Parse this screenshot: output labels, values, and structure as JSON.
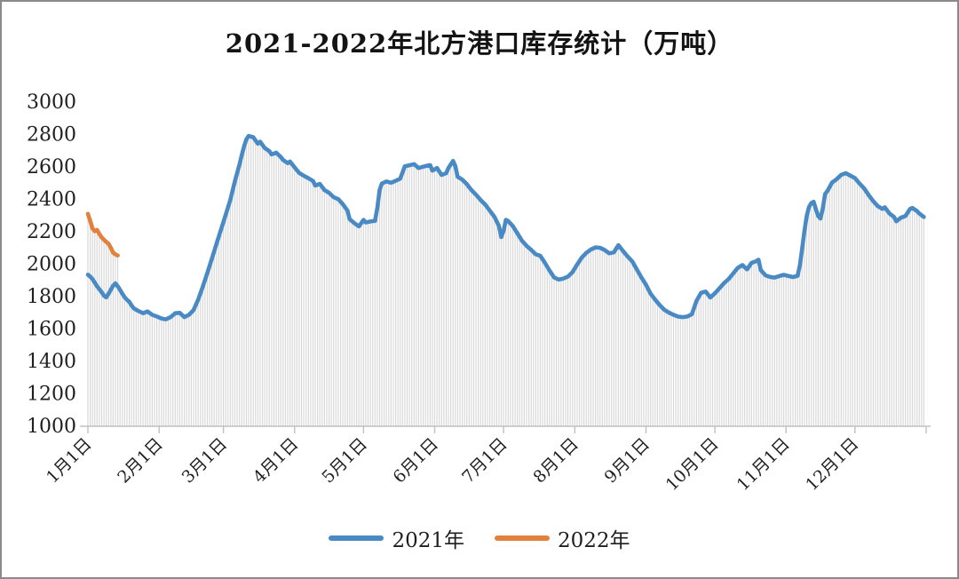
{
  "chart_data": {
    "type": "line",
    "title": "2021-2022年北方港口库存统计（万吨）",
    "xlabel": "",
    "ylabel": "",
    "unit": "万吨",
    "ylim": [
      1000,
      3000
    ],
    "y_ticks": [
      3000,
      2800,
      2600,
      2400,
      2200,
      2000,
      1800,
      1600,
      1400,
      1200,
      1000
    ],
    "x_tick_labels": [
      "1月1日",
      "2月1日",
      "3月1日",
      "4月1日",
      "5月1日",
      "6月1日",
      "7月1日",
      "8月1日",
      "9月1日",
      "10月1日",
      "11月1日",
      "12月1日"
    ],
    "x_tick_days": [
      0,
      31,
      59,
      90,
      120,
      151,
      181,
      212,
      243,
      273,
      304,
      334
    ],
    "days_span": 365,
    "grid": false,
    "legend_position": "bottom",
    "axis_color": "#c0c0c0",
    "text_color": "#1f1f1f",
    "drop_lines": {
      "show": true,
      "color": "#d8d8d8"
    },
    "series": [
      {
        "name": "2021年",
        "color": "#4a8ac4",
        "points": [
          [
            0,
            1930
          ],
          [
            1,
            1918
          ],
          [
            2,
            1902
          ],
          [
            3,
            1880
          ],
          [
            4,
            1858
          ],
          [
            5,
            1840
          ],
          [
            6,
            1822
          ],
          [
            7,
            1800
          ],
          [
            8,
            1790
          ],
          [
            9,
            1812
          ],
          [
            10,
            1838
          ],
          [
            11,
            1862
          ],
          [
            12,
            1876
          ],
          [
            13,
            1858
          ],
          [
            14,
            1836
          ],
          [
            15,
            1812
          ],
          [
            16,
            1790
          ],
          [
            17,
            1775
          ],
          [
            18,
            1762
          ],
          [
            19,
            1740
          ],
          [
            20,
            1722
          ],
          [
            22,
            1706
          ],
          [
            24,
            1692
          ],
          [
            26,
            1703
          ],
          [
            28,
            1682
          ],
          [
            30,
            1672
          ],
          [
            32,
            1660
          ],
          [
            34,
            1654
          ],
          [
            36,
            1668
          ],
          [
            38,
            1692
          ],
          [
            40,
            1694
          ],
          [
            42,
            1668
          ],
          [
            44,
            1682
          ],
          [
            46,
            1712
          ],
          [
            48,
            1775
          ],
          [
            50,
            1855
          ],
          [
            52,
            1940
          ],
          [
            54,
            2030
          ],
          [
            56,
            2120
          ],
          [
            58,
            2210
          ],
          [
            60,
            2300
          ],
          [
            62,
            2392
          ],
          [
            63,
            2448
          ],
          [
            64,
            2505
          ],
          [
            66,
            2610
          ],
          [
            67,
            2668
          ],
          [
            68,
            2722
          ],
          [
            69,
            2765
          ],
          [
            70,
            2786
          ],
          [
            72,
            2778
          ],
          [
            74,
            2738
          ],
          [
            75,
            2750
          ],
          [
            77,
            2712
          ],
          [
            79,
            2692
          ],
          [
            80,
            2672
          ],
          [
            82,
            2683
          ],
          [
            84,
            2656
          ],
          [
            85,
            2638
          ],
          [
            87,
            2618
          ],
          [
            88,
            2628
          ],
          [
            90,
            2592
          ],
          [
            92,
            2558
          ],
          [
            94,
            2540
          ],
          [
            96,
            2525
          ],
          [
            98,
            2508
          ],
          [
            99,
            2480
          ],
          [
            101,
            2490
          ],
          [
            103,
            2452
          ],
          [
            105,
            2435
          ],
          [
            107,
            2408
          ],
          [
            109,
            2396
          ],
          [
            111,
            2365
          ],
          [
            113,
            2325
          ],
          [
            114,
            2272
          ],
          [
            116,
            2248
          ],
          [
            118,
            2228
          ],
          [
            120,
            2268
          ],
          [
            121,
            2252
          ],
          [
            123,
            2258
          ],
          [
            125,
            2262
          ],
          [
            126,
            2340
          ],
          [
            127,
            2452
          ],
          [
            128,
            2492
          ],
          [
            130,
            2505
          ],
          [
            132,
            2497
          ],
          [
            134,
            2509
          ],
          [
            136,
            2522
          ],
          [
            137,
            2560
          ],
          [
            138,
            2599
          ],
          [
            140,
            2605
          ],
          [
            142,
            2612
          ],
          [
            144,
            2588
          ],
          [
            146,
            2596
          ],
          [
            147,
            2600
          ],
          [
            149,
            2606
          ],
          [
            150,
            2572
          ],
          [
            152,
            2588
          ],
          [
            154,
            2545
          ],
          [
            156,
            2556
          ],
          [
            157,
            2588
          ],
          [
            159,
            2632
          ],
          [
            160,
            2599
          ],
          [
            161,
            2534
          ],
          [
            163,
            2516
          ],
          [
            165,
            2489
          ],
          [
            167,
            2452
          ],
          [
            169,
            2423
          ],
          [
            171,
            2390
          ],
          [
            173,
            2363
          ],
          [
            175,
            2325
          ],
          [
            177,
            2287
          ],
          [
            179,
            2230
          ],
          [
            180,
            2162
          ],
          [
            181,
            2200
          ],
          [
            182,
            2268
          ],
          [
            183,
            2261
          ],
          [
            185,
            2230
          ],
          [
            187,
            2186
          ],
          [
            189,
            2139
          ],
          [
            191,
            2108
          ],
          [
            193,
            2083
          ],
          [
            195,
            2056
          ],
          [
            197,
            2046
          ],
          [
            199,
            2003
          ],
          [
            201,
            1956
          ],
          [
            203,
            1913
          ],
          [
            205,
            1900
          ],
          [
            207,
            1906
          ],
          [
            209,
            1918
          ],
          [
            211,
            1945
          ],
          [
            213,
            1992
          ],
          [
            215,
            2035
          ],
          [
            217,
            2064
          ],
          [
            219,
            2085
          ],
          [
            221,
            2098
          ],
          [
            223,
            2096
          ],
          [
            225,
            2082
          ],
          [
            227,
            2062
          ],
          [
            229,
            2068
          ],
          [
            231,
            2112
          ],
          [
            233,
            2076
          ],
          [
            235,
            2042
          ],
          [
            237,
            2012
          ],
          [
            239,
            1963
          ],
          [
            241,
            1913
          ],
          [
            243,
            1868
          ],
          [
            245,
            1813
          ],
          [
            247,
            1776
          ],
          [
            249,
            1742
          ],
          [
            251,
            1713
          ],
          [
            253,
            1696
          ],
          [
            255,
            1682
          ],
          [
            257,
            1671
          ],
          [
            259,
            1668
          ],
          [
            261,
            1672
          ],
          [
            263,
            1686
          ],
          [
            265,
            1768
          ],
          [
            267,
            1818
          ],
          [
            269,
            1826
          ],
          [
            271,
            1789
          ],
          [
            273,
            1815
          ],
          [
            275,
            1846
          ],
          [
            277,
            1878
          ],
          [
            279,
            1903
          ],
          [
            281,
            1938
          ],
          [
            283,
            1972
          ],
          [
            285,
            1989
          ],
          [
            287,
            1963
          ],
          [
            289,
            2003
          ],
          [
            291,
            2013
          ],
          [
            292,
            2022
          ],
          [
            293,
            1958
          ],
          [
            295,
            1926
          ],
          [
            297,
            1916
          ],
          [
            299,
            1912
          ],
          [
            301,
            1921
          ],
          [
            303,
            1929
          ],
          [
            305,
            1922
          ],
          [
            307,
            1915
          ],
          [
            309,
            1923
          ],
          [
            310,
            1988
          ],
          [
            311,
            2088
          ],
          [
            312,
            2198
          ],
          [
            313,
            2292
          ],
          [
            314,
            2348
          ],
          [
            315,
            2372
          ],
          [
            316,
            2380
          ],
          [
            317,
            2332
          ],
          [
            318,
            2292
          ],
          [
            319,
            2276
          ],
          [
            320,
            2338
          ],
          [
            321,
            2428
          ],
          [
            322,
            2446
          ],
          [
            324,
            2498
          ],
          [
            326,
            2519
          ],
          [
            328,
            2546
          ],
          [
            330,
            2556
          ],
          [
            332,
            2541
          ],
          [
            334,
            2526
          ],
          [
            336,
            2492
          ],
          [
            338,
            2462
          ],
          [
            340,
            2421
          ],
          [
            342,
            2383
          ],
          [
            344,
            2352
          ],
          [
            346,
            2336
          ],
          [
            347,
            2346
          ],
          [
            349,
            2308
          ],
          [
            351,
            2286
          ],
          [
            352,
            2259
          ],
          [
            354,
            2281
          ],
          [
            356,
            2292
          ],
          [
            358,
            2336
          ],
          [
            359,
            2342
          ],
          [
            361,
            2322
          ],
          [
            362,
            2308
          ],
          [
            364,
            2286
          ]
        ]
      },
      {
        "name": "2022年",
        "color": "#e2813e",
        "points": [
          [
            0,
            2305
          ],
          [
            1,
            2262
          ],
          [
            2,
            2215
          ],
          [
            3,
            2198
          ],
          [
            4,
            2206
          ],
          [
            5,
            2181
          ],
          [
            6,
            2160
          ],
          [
            7,
            2145
          ],
          [
            8,
            2132
          ],
          [
            9,
            2120
          ],
          [
            10,
            2095
          ],
          [
            11,
            2066
          ],
          [
            12,
            2055
          ],
          [
            13,
            2048
          ]
        ]
      }
    ]
  }
}
